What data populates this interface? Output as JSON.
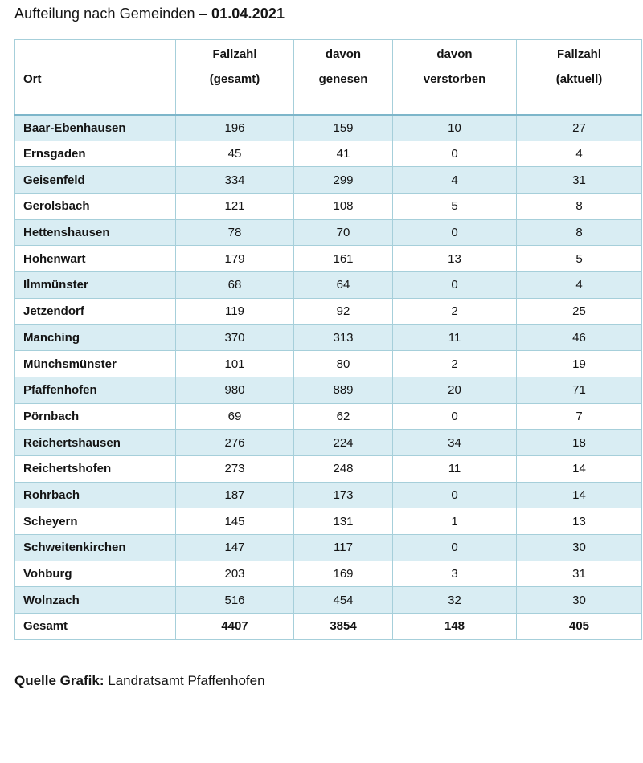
{
  "title": {
    "prefix": "Aufteilung nach Gemeinden – ",
    "date": "01.04.2021"
  },
  "chart_data": {
    "type": "table",
    "title": "Aufteilung nach Gemeinden – 01.04.2021",
    "columns": [
      {
        "label": "Ort",
        "lines": [
          "",
          "Ort"
        ]
      },
      {
        "label": "Fallzahl (gesamt)",
        "lines": [
          "Fallzahl",
          "(gesamt)"
        ]
      },
      {
        "label": "davon genesen",
        "lines": [
          "davon",
          "genesen"
        ]
      },
      {
        "label": "davon verstorben",
        "lines": [
          "davon",
          "verstorben"
        ]
      },
      {
        "label": "Fallzahl (aktuell)",
        "lines": [
          "Fallzahl",
          "(aktuell)"
        ]
      }
    ],
    "rows": [
      {
        "ort": "Baar-Ebenhausen",
        "values": [
          196,
          159,
          10,
          27
        ]
      },
      {
        "ort": "Ernsgaden",
        "values": [
          45,
          41,
          0,
          4
        ]
      },
      {
        "ort": "Geisenfeld",
        "values": [
          334,
          299,
          4,
          31
        ]
      },
      {
        "ort": "Gerolsbach",
        "values": [
          121,
          108,
          5,
          8
        ]
      },
      {
        "ort": "Hettenshausen",
        "values": [
          78,
          70,
          0,
          8
        ]
      },
      {
        "ort": "Hohenwart",
        "values": [
          179,
          161,
          13,
          5
        ]
      },
      {
        "ort": "Ilmmünster",
        "values": [
          68,
          64,
          0,
          4
        ]
      },
      {
        "ort": "Jetzendorf",
        "values": [
          119,
          92,
          2,
          25
        ]
      },
      {
        "ort": "Manching",
        "values": [
          370,
          313,
          11,
          46
        ]
      },
      {
        "ort": "Münchsmünster",
        "values": [
          101,
          80,
          2,
          19
        ]
      },
      {
        "ort": "Pfaffenhofen",
        "values": [
          980,
          889,
          20,
          71
        ]
      },
      {
        "ort": "Pörnbach",
        "values": [
          69,
          62,
          0,
          7
        ]
      },
      {
        "ort": "Reichertshausen",
        "values": [
          276,
          224,
          34,
          18
        ]
      },
      {
        "ort": "Reichertshofen",
        "values": [
          273,
          248,
          11,
          14
        ]
      },
      {
        "ort": "Rohrbach",
        "values": [
          187,
          173,
          0,
          14
        ]
      },
      {
        "ort": "Scheyern",
        "values": [
          145,
          131,
          1,
          13
        ]
      },
      {
        "ort": "Schweitenkirchen",
        "values": [
          147,
          117,
          0,
          30
        ]
      },
      {
        "ort": "Vohburg",
        "values": [
          203,
          169,
          3,
          31
        ]
      },
      {
        "ort": "Wolnzach",
        "values": [
          516,
          454,
          32,
          30
        ]
      }
    ],
    "total_row": {
      "ort": "Gesamt",
      "values": [
        4407,
        3854,
        148,
        405
      ]
    }
  },
  "footer": {
    "label": "Quelle Grafik:",
    "text": "Landratsamt Pfaffenhofen"
  },
  "colors": {
    "row_alt": "#d9edf3",
    "border": "#a6cfda",
    "header_divider": "#7db6ca",
    "text": "#141414"
  }
}
